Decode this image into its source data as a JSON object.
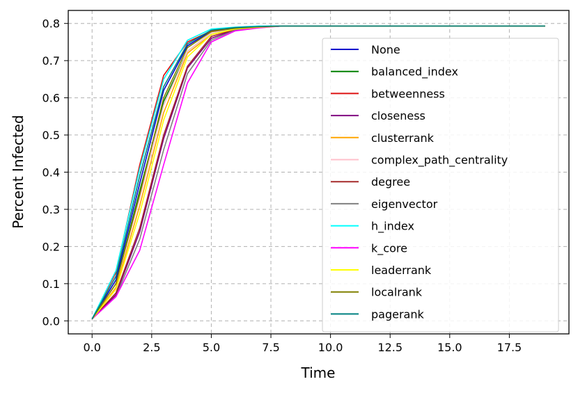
{
  "chart_data": {
    "type": "line",
    "xlabel": "Time",
    "ylabel": "Percent Infected",
    "xlim": [
      -1,
      20
    ],
    "ylim": [
      -0.035,
      0.835
    ],
    "x_ticks": [
      "0.0",
      "2.5",
      "5.0",
      "7.5",
      "10.0",
      "12.5",
      "15.0",
      "17.5"
    ],
    "y_ticks": [
      "0.0",
      "0.1",
      "0.2",
      "0.3",
      "0.4",
      "0.5",
      "0.6",
      "0.7",
      "0.8"
    ],
    "x_tick_values": [
      0,
      2.5,
      5,
      7.5,
      10,
      12.5,
      15,
      17.5
    ],
    "y_tick_values": [
      0,
      0.1,
      0.2,
      0.3,
      0.4,
      0.5,
      0.6,
      0.7,
      0.8
    ],
    "grid": true,
    "legend_position": "right",
    "x": [
      0,
      1,
      2,
      3,
      4,
      5,
      6,
      7,
      8,
      9,
      10,
      11,
      12,
      13,
      14,
      15,
      16,
      17,
      18,
      19
    ],
    "series": [
      {
        "name": "None",
        "color": "#0000cc",
        "values": [
          0.005,
          0.11,
          0.37,
          0.62,
          0.74,
          0.78,
          0.788,
          0.792,
          0.793,
          0.793,
          0.793,
          0.793,
          0.793,
          0.793,
          0.793,
          0.793,
          0.793,
          0.793,
          0.793,
          0.793
        ]
      },
      {
        "name": "balanced_index",
        "color": "#008000",
        "values": [
          0.005,
          0.1,
          0.35,
          0.59,
          0.725,
          0.775,
          0.786,
          0.791,
          0.793,
          0.793,
          0.793,
          0.793,
          0.793,
          0.793,
          0.793,
          0.793,
          0.793,
          0.793,
          0.793,
          0.793
        ]
      },
      {
        "name": "betweenness",
        "color": "#dd1111",
        "values": [
          0.005,
          0.13,
          0.42,
          0.66,
          0.75,
          0.78,
          0.788,
          0.792,
          0.793,
          0.793,
          0.793,
          0.793,
          0.793,
          0.793,
          0.793,
          0.793,
          0.793,
          0.793,
          0.793,
          0.793
        ]
      },
      {
        "name": "closeness",
        "color": "#800080",
        "values": [
          0.005,
          0.07,
          0.24,
          0.49,
          0.68,
          0.76,
          0.783,
          0.79,
          0.793,
          0.793,
          0.793,
          0.793,
          0.793,
          0.793,
          0.793,
          0.793,
          0.793,
          0.793,
          0.793,
          0.793
        ]
      },
      {
        "name": "clusterrank",
        "color": "#ffa500",
        "values": [
          0.005,
          0.09,
          0.31,
          0.56,
          0.72,
          0.77,
          0.785,
          0.791,
          0.793,
          0.793,
          0.793,
          0.793,
          0.793,
          0.793,
          0.793,
          0.793,
          0.793,
          0.793,
          0.793,
          0.793
        ]
      },
      {
        "name": "complex_path_centrality",
        "color": "#ffc0cb",
        "values": [
          0.005,
          0.1,
          0.33,
          0.58,
          0.725,
          0.775,
          0.786,
          0.791,
          0.793,
          0.793,
          0.793,
          0.793,
          0.793,
          0.793,
          0.793,
          0.793,
          0.793,
          0.793,
          0.793,
          0.793
        ]
      },
      {
        "name": "degree",
        "color": "#a52a2a",
        "values": [
          0.005,
          0.075,
          0.25,
          0.5,
          0.685,
          0.765,
          0.784,
          0.79,
          0.793,
          0.793,
          0.793,
          0.793,
          0.793,
          0.793,
          0.793,
          0.793,
          0.793,
          0.793,
          0.793,
          0.793
        ]
      },
      {
        "name": "eigenvector",
        "color": "#808080",
        "values": [
          0.005,
          0.065,
          0.22,
          0.46,
          0.665,
          0.755,
          0.782,
          0.79,
          0.793,
          0.793,
          0.793,
          0.793,
          0.793,
          0.793,
          0.793,
          0.793,
          0.793,
          0.793,
          0.793,
          0.793
        ]
      },
      {
        "name": "h_index",
        "color": "#00ffff",
        "values": [
          0.005,
          0.135,
          0.41,
          0.65,
          0.755,
          0.785,
          0.79,
          0.793,
          0.793,
          0.793,
          0.793,
          0.793,
          0.793,
          0.793,
          0.793,
          0.793,
          0.793,
          0.793,
          0.793,
          0.793
        ]
      },
      {
        "name": "k_core",
        "color": "#ff00ff",
        "values": [
          0.005,
          0.065,
          0.19,
          0.42,
          0.64,
          0.75,
          0.78,
          0.788,
          0.793,
          0.793,
          0.793,
          0.793,
          0.793,
          0.793,
          0.793,
          0.793,
          0.793,
          0.793,
          0.793,
          0.793
        ]
      },
      {
        "name": "leaderrank",
        "color": "#ffff00",
        "values": [
          0.005,
          0.085,
          0.29,
          0.54,
          0.71,
          0.77,
          0.785,
          0.79,
          0.793,
          0.793,
          0.793,
          0.793,
          0.793,
          0.793,
          0.793,
          0.793,
          0.793,
          0.793,
          0.793,
          0.793
        ]
      },
      {
        "name": "localrank",
        "color": "#808000",
        "values": [
          0.005,
          0.1,
          0.34,
          0.6,
          0.735,
          0.778,
          0.787,
          0.791,
          0.793,
          0.793,
          0.793,
          0.793,
          0.793,
          0.793,
          0.793,
          0.793,
          0.793,
          0.793,
          0.793,
          0.793
        ]
      },
      {
        "name": "pagerank",
        "color": "#008080",
        "values": [
          0.005,
          0.12,
          0.39,
          0.63,
          0.745,
          0.782,
          0.789,
          0.792,
          0.793,
          0.793,
          0.793,
          0.793,
          0.793,
          0.793,
          0.793,
          0.793,
          0.793,
          0.793,
          0.793,
          0.793
        ]
      }
    ]
  }
}
